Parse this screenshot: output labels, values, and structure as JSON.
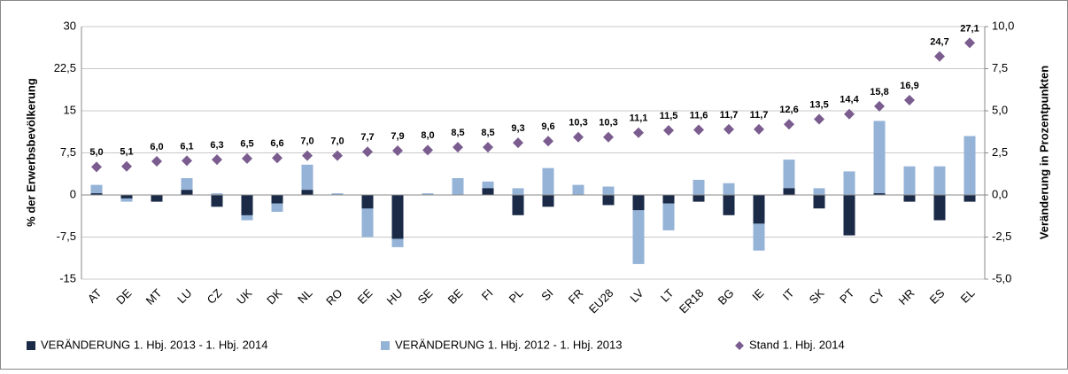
{
  "chart_data": {
    "type": "bar",
    "categories": [
      "AT",
      "DE",
      "MT",
      "LU",
      "CZ",
      "UK",
      "DK",
      "NL",
      "RO",
      "EE",
      "HU",
      "SE",
      "BE",
      "FI",
      "PL",
      "SI",
      "FR",
      "EU28",
      "LV",
      "LT",
      "ER18",
      "BG",
      "IE",
      "IT",
      "SK",
      "PT",
      "CY",
      "HR",
      "ES",
      "EL"
    ],
    "series": [
      {
        "name": "VERÄNDERUNG 1. Hbj. 2012 - 1. Hbj. 2013",
        "color": "#95b3d7",
        "axis": "y2",
        "type": "bar",
        "values": [
          0.6,
          -0.4,
          -0.1,
          1.0,
          0.1,
          -1.5,
          -1.0,
          1.8,
          0.1,
          -2.5,
          -3.1,
          0.1,
          1.0,
          0.8,
          0.4,
          1.6,
          0.6,
          0.5,
          -4.1,
          -2.1,
          0.9,
          0.7,
          -3.3,
          2.1,
          0.4,
          1.4,
          4.4,
          1.7,
          1.7,
          3.5
        ]
      },
      {
        "name": "VERÄNDERUNG 1. Hbj. 2013 - 1. Hbj. 2014",
        "color": "#1a2a47",
        "axis": "y2",
        "type": "bar",
        "values": [
          0.1,
          -0.2,
          -0.4,
          0.3,
          -0.7,
          -1.2,
          -0.5,
          0.3,
          0,
          -0.8,
          -2.6,
          0,
          0,
          0.4,
          -1.2,
          -0.7,
          0,
          -0.6,
          -0.9,
          -0.5,
          -0.4,
          -1.2,
          -1.7,
          0.4,
          -0.8,
          -2.4,
          0.1,
          -0.4,
          -1.5,
          -0.4
        ]
      },
      {
        "name": "Stand 1. Hbj. 2014",
        "color": "#7a5c8f",
        "type": "scatter",
        "values": [
          5.0,
          5.1,
          6.0,
          6.1,
          6.3,
          6.5,
          6.6,
          7.0,
          7.0,
          7.7,
          7.9,
          8.0,
          8.5,
          8.5,
          9.3,
          9.6,
          10.3,
          10.3,
          11.1,
          11.5,
          11.6,
          11.7,
          11.7,
          12.6,
          13.5,
          14.4,
          15.8,
          16.9,
          24.7,
          27.1
        ],
        "value_labels": [
          "5,0",
          "5,1",
          "6,0",
          "6,1",
          "6,3",
          "6,5",
          "6,6",
          "7,0",
          "7,0",
          "7,7",
          "7,9",
          "8,0",
          "8,5",
          "8,5",
          "9,3",
          "9,6",
          "10,3",
          "10,3",
          "11,1",
          "11,5",
          "11,6",
          "11,7",
          "11,7",
          "12,6",
          "13,5",
          "14,4",
          "15,8",
          "16,9",
          "24,7",
          "27,1"
        ]
      }
    ],
    "legend_order": [
      1,
      0,
      2
    ],
    "y_label": "% der Erwerbsbevölkerung",
    "y2_label": "Veränderung in Prozentpunkten",
    "ylim": [
      -15,
      30
    ],
    "yticks": [
      -15,
      {
        "value": -7.5,
        "label": "-7,5"
      },
      0,
      {
        "value": 7.5,
        "label": "7,5"
      },
      15,
      {
        "value": 22.5,
        "label": "22,5"
      },
      30
    ],
    "y2lim": [
      -5,
      10
    ],
    "y2ticks": [
      {
        "value": -5,
        "label": "-5,0"
      },
      {
        "value": -2.5,
        "label": "-2,5"
      },
      {
        "value": 0,
        "label": "0,0"
      },
      {
        "value": 2.5,
        "label": "2,5"
      },
      {
        "value": 5,
        "label": "5,0"
      },
      {
        "value": 7.5,
        "label": "7,5"
      },
      {
        "value": 10,
        "label": "10,0"
      }
    ],
    "grid": true
  }
}
